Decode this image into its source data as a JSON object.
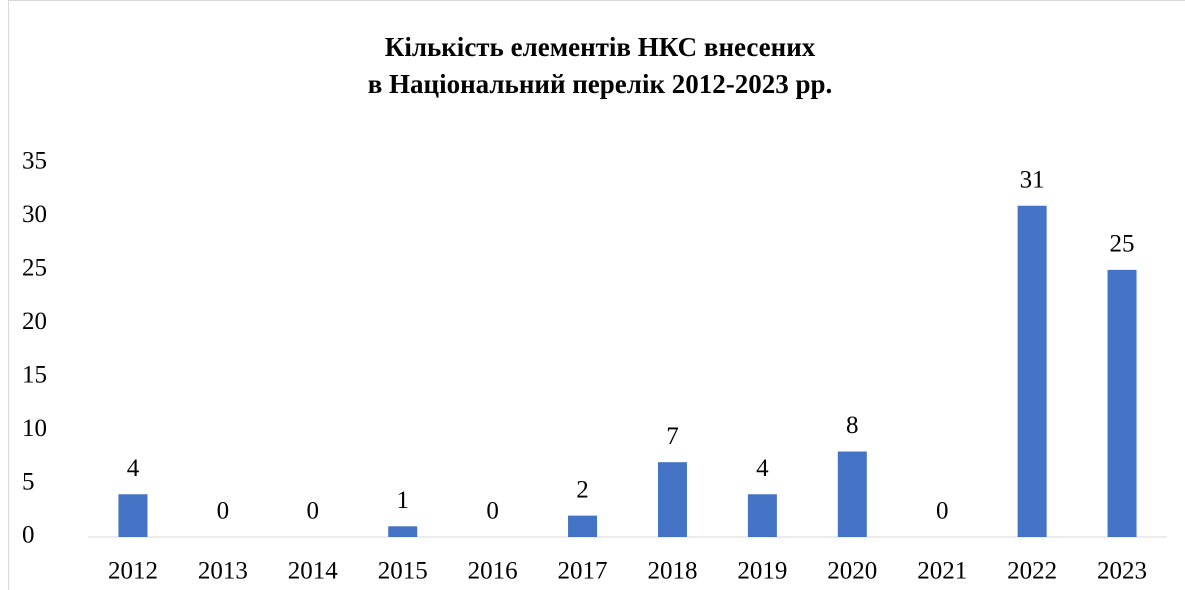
{
  "chart_data": {
    "type": "bar",
    "title": [
      "Кількість елементів НКС внесених",
      "в Національний перелік 2012-2023 рр."
    ],
    "categories": [
      "2012",
      "2013",
      "2014",
      "2015",
      "2016",
      "2017",
      "2018",
      "2019",
      "2020",
      "2021",
      "2022",
      "2023"
    ],
    "values": [
      4,
      0,
      0,
      1,
      0,
      2,
      7,
      4,
      8,
      0,
      31,
      25
    ],
    "color": "#4472c4",
    "ylim": [
      0,
      35
    ],
    "yticks": [
      0,
      5,
      10,
      15,
      20,
      25,
      30,
      35
    ],
    "grid": false,
    "data_labels": true
  }
}
